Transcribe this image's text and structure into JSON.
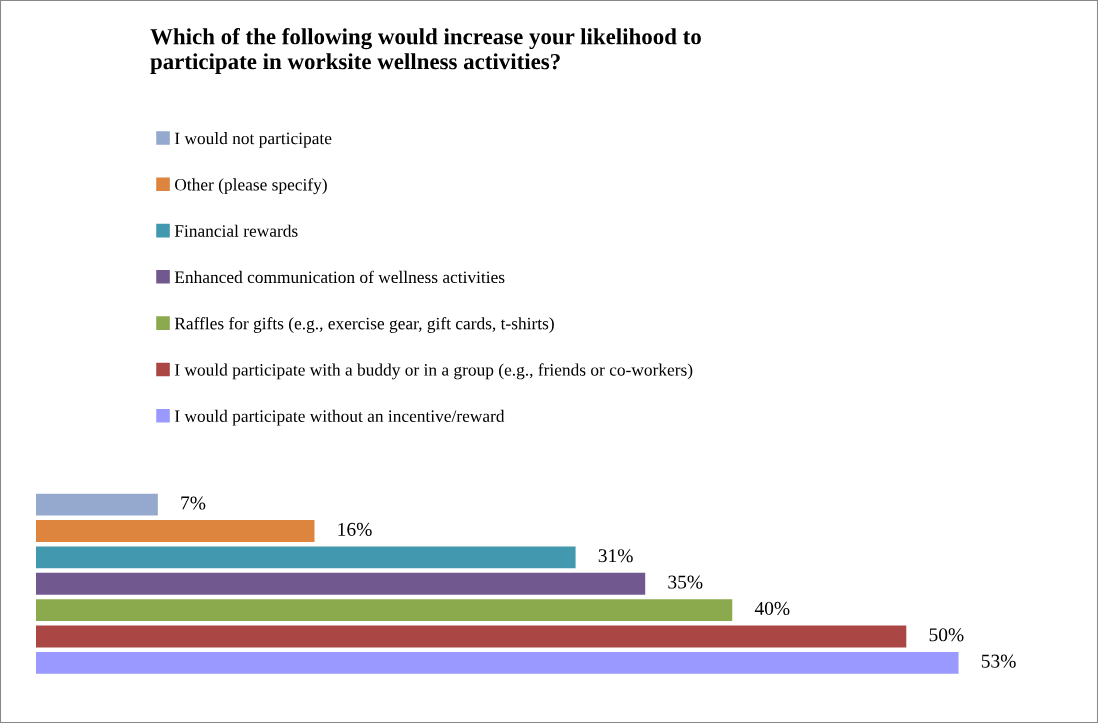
{
  "chart_data": {
    "type": "bar",
    "orientation": "horizontal",
    "title": "Which of the following would increase your likelihood to\nparticipate in worksite wellness activities?",
    "categories": [
      null
    ],
    "legend": "top",
    "series": [
      {
        "name": "I would not participate",
        "color": "#95a9cf",
        "values": [
          7
        ],
        "value_labels": [
          "7%"
        ]
      },
      {
        "name": "Other (please specify)",
        "color": "#dd843f",
        "values": [
          16
        ],
        "value_labels": [
          "16%"
        ]
      },
      {
        "name": "Financial rewards",
        "color": "#4198af",
        "values": [
          31
        ],
        "value_labels": [
          "31%"
        ]
      },
      {
        "name": "Enhanced communication of wellness activities",
        "color": "#71588f",
        "values": [
          35
        ],
        "value_labels": [
          "35%"
        ]
      },
      {
        "name": "Raffles for gifts (e.g., exercise gear, gift cards, t-shirts)",
        "color": "#8ba94d",
        "values": [
          40
        ],
        "value_labels": [
          "40%"
        ]
      },
      {
        "name": "I would participate with a buddy or in a group (e.g., friends or co-workers)",
        "color": "#aa4644",
        "values": [
          50
        ],
        "value_labels": [
          "50%"
        ]
      },
      {
        "name": "I would participate without an incentive/reward",
        "color": "#9999ff",
        "values": [
          53
        ],
        "value_labels": [
          "53%"
        ]
      }
    ]
  }
}
